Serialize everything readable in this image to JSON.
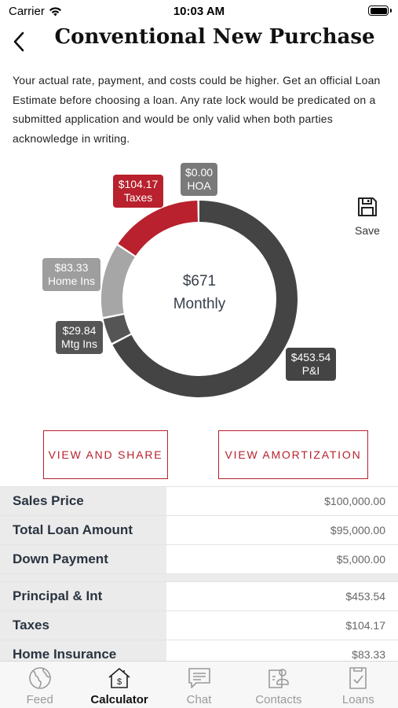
{
  "status_bar": {
    "carrier": "Carrier",
    "time": "10:03 AM"
  },
  "header": {
    "title": "Conventional New Purchase"
  },
  "disclaimer": "Your actual rate, payment, and costs could be higher. Get an official Loan Estimate before choosing a loan. Any rate lock would be predicated on a submitted application and would be only valid when both parties acknowledge in writing.",
  "chart_data": {
    "type": "pie",
    "center_amount": "$671",
    "center_label": "Monthly",
    "slices": [
      {
        "name": "P&I",
        "value": 453.54,
        "label": "$453.54",
        "color": "#444444"
      },
      {
        "name": "Mtg Ins",
        "value": 29.84,
        "label": "$29.84",
        "color": "#555555"
      },
      {
        "name": "Home Ins",
        "value": 83.33,
        "label": "$83.33",
        "color": "#a6a6a6"
      },
      {
        "name": "Taxes",
        "value": 104.17,
        "label": "$104.17",
        "color": "#b8212d"
      },
      {
        "name": "HOA",
        "value": 0.0,
        "label": "$0.00",
        "color": "#7a7a7a"
      }
    ]
  },
  "save": {
    "label": "Save",
    "icon": "save-icon"
  },
  "actions": {
    "view_share": "VIEW AND SHARE",
    "view_amortization": "VIEW AMORTIZATION"
  },
  "table": {
    "group1": [
      {
        "label": "Sales Price",
        "value": "$100,000.00"
      },
      {
        "label": "Total Loan Amount",
        "value": "$95,000.00"
      },
      {
        "label": "Down Payment",
        "value": "$5,000.00"
      }
    ],
    "group2": [
      {
        "label": "Principal & Int",
        "value": "$453.54"
      },
      {
        "label": "Taxes",
        "value": "$104.17"
      },
      {
        "label": "Home Insurance",
        "value": "$83.33"
      }
    ]
  },
  "tabs": [
    {
      "label": "Feed",
      "icon": "globe-icon",
      "active": false
    },
    {
      "label": "Calculator",
      "icon": "calculator-house-icon",
      "active": true
    },
    {
      "label": "Chat",
      "icon": "chat-icon",
      "active": false
    },
    {
      "label": "Contacts",
      "icon": "contacts-icon",
      "active": false
    },
    {
      "label": "Loans",
      "icon": "loans-icon",
      "active": false
    }
  ]
}
